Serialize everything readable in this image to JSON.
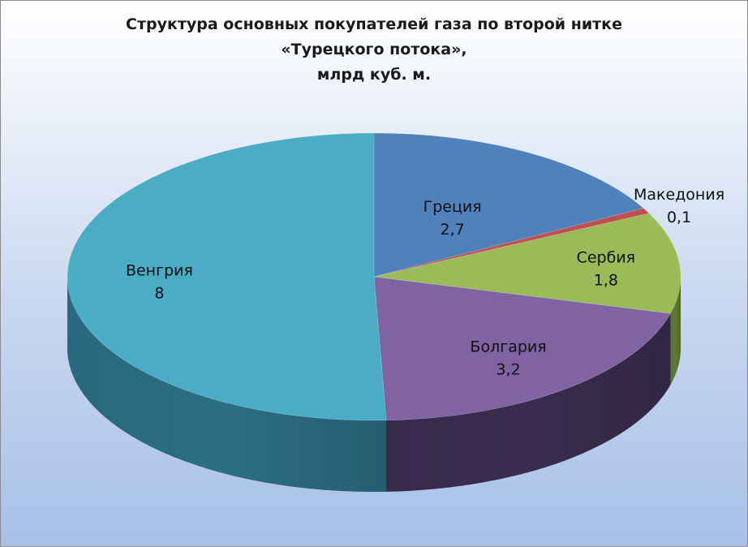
{
  "chart_data": {
    "type": "pie",
    "title_lines": [
      "Структура основных покупателей газа по второй нитке",
      "«Турецкого потока»,",
      "млрд куб. м."
    ],
    "slices": [
      {
        "name": "Греция",
        "value_label": "2,7",
        "value": 2.7,
        "color": "#4f81bd",
        "side_color": "#2f4f79"
      },
      {
        "name": "Македония",
        "value_label": "0,1",
        "value": 0.1,
        "color": "#c0504d",
        "side_color": "#7a2f2d"
      },
      {
        "name": "Сербия",
        "value_label": "1,8",
        "value": 1.8,
        "color": "#9bbb59",
        "side_color": "#5f7832"
      },
      {
        "name": "Болгария",
        "value_label": "3,2",
        "value": 3.2,
        "color": "#8064a2",
        "side_color": "#3a2d4e"
      },
      {
        "name": "Венгрия",
        "value_label": "8",
        "value": 8,
        "color": "#4bacc6",
        "side_color": "#2a6f82"
      }
    ],
    "legend": "none",
    "data_labels": "category name and value"
  }
}
